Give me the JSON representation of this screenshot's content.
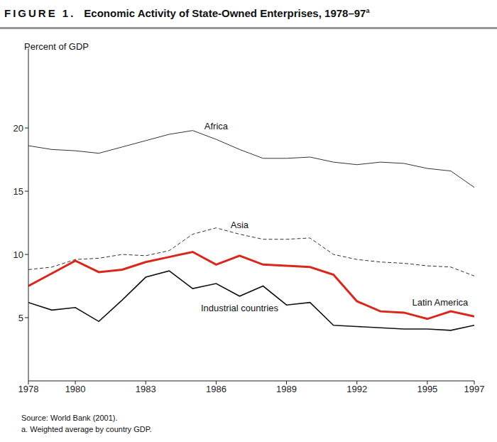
{
  "chart_data": {
    "type": "line",
    "figure_label": "FIGURE 1.",
    "title": "Economic Activity of State-Owned Enterprises, 1978–97",
    "title_note_mark": "a",
    "ylabel": "Percent of GDP",
    "source": "Source: World Bank (2001).",
    "note": "a. Weighted average by country GDP.",
    "x": [
      1978,
      1979,
      1980,
      1981,
      1982,
      1983,
      1984,
      1985,
      1986,
      1987,
      1988,
      1989,
      1990,
      1991,
      1992,
      1993,
      1994,
      1995,
      1996,
      1997
    ],
    "xlim": [
      1978,
      1997
    ],
    "xticks": [
      1978,
      1980,
      1983,
      1986,
      1989,
      1992,
      1995,
      1997
    ],
    "ylim": [
      0,
      26.3
    ],
    "yticks": [
      5,
      10,
      15,
      20
    ],
    "grid": false,
    "series": [
      {
        "name": "Africa",
        "color": "#333333",
        "line_style": "solid",
        "values": [
          18.6,
          18.3,
          18.2,
          18.0,
          18.5,
          19.0,
          19.5,
          19.8,
          19.1,
          18.3,
          17.6,
          17.6,
          17.7,
          17.3,
          17.1,
          17.3,
          17.2,
          16.8,
          16.6,
          15.3
        ]
      },
      {
        "name": "Asia",
        "color": "#333333",
        "line_style": "dashed",
        "values": [
          8.8,
          9.0,
          9.6,
          9.7,
          10.0,
          9.9,
          10.3,
          11.6,
          12.1,
          11.6,
          11.2,
          11.2,
          11.3,
          10.0,
          9.6,
          9.4,
          9.3,
          9.1,
          9.0,
          8.3
        ]
      },
      {
        "name": "Latin America",
        "color": "#d9271c",
        "line_style": "solid",
        "values": [
          7.5,
          8.5,
          9.5,
          8.6,
          8.8,
          9.4,
          9.8,
          10.2,
          9.2,
          9.9,
          9.2,
          9.1,
          9.0,
          8.4,
          6.3,
          5.5,
          5.4,
          4.9,
          5.5,
          5.1
        ]
      },
      {
        "name": "Industrial countries",
        "color": "#111111",
        "line_style": "solid",
        "values": [
          6.2,
          5.6,
          5.8,
          4.7,
          6.4,
          8.2,
          8.7,
          7.3,
          7.7,
          6.7,
          7.5,
          6.0,
          6.2,
          4.4,
          4.3,
          4.2,
          4.1,
          4.1,
          4.0,
          4.4
        ]
      }
    ]
  }
}
